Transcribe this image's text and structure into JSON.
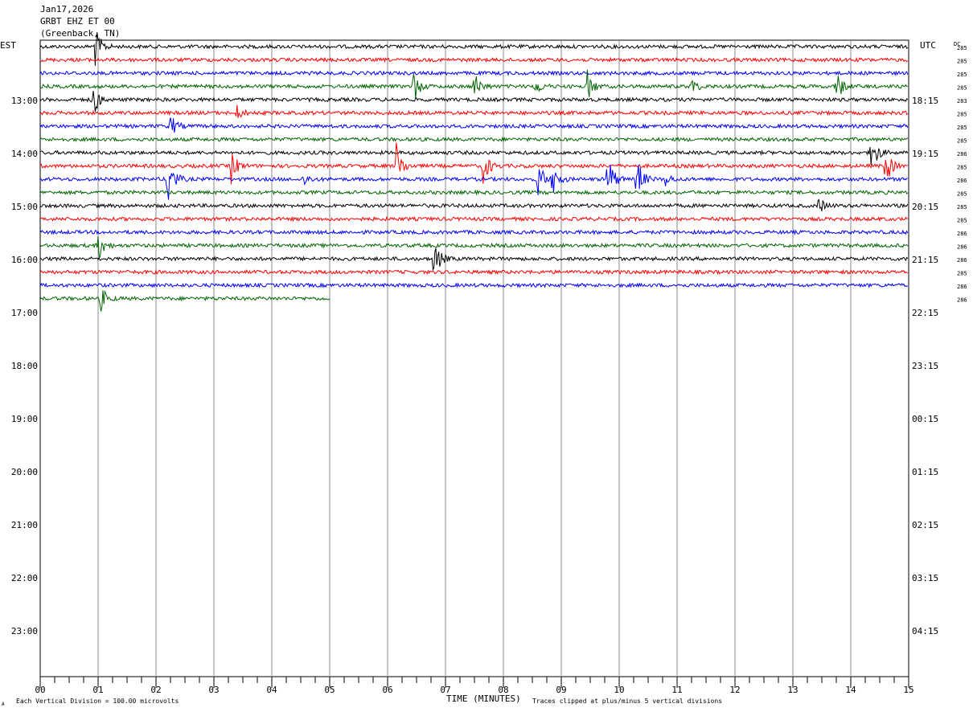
{
  "header": {
    "date": "Jan17,2026",
    "station": "GRBT EHZ ET 00",
    "location": "(Greenback, TN)"
  },
  "left_tz": "EST",
  "right_tz": "UTC",
  "dc_label": "DC",
  "footer": {
    "vertical_scale": "Each Vertical Division =  100.00 microvolts",
    "xlabel": "TIME (MINUTES)",
    "clip_note": "Traces clipped at plus/minus 5 vertical divisions",
    "corner_mark": "A"
  },
  "chart_data": {
    "type": "line",
    "title": "",
    "xlabel": "TIME (MINUTES)",
    "ylabel": "",
    "xlim": [
      0,
      15
    ],
    "x_ticks": [
      "00",
      "01",
      "02",
      "03",
      "04",
      "05",
      "06",
      "07",
      "08",
      "09",
      "10",
      "11",
      "12",
      "13",
      "14",
      "15"
    ],
    "left_hour_labels": [
      "13:00",
      "14:00",
      "15:00",
      "16:00",
      "17:00",
      "18:00",
      "19:00",
      "20:00",
      "21:00",
      "22:00",
      "23:00"
    ],
    "right_hour_labels": [
      "18:15",
      "19:15",
      "20:15",
      "21:15",
      "22:15",
      "23:15",
      "00:15",
      "01:15",
      "02:15",
      "03:15",
      "04:15"
    ],
    "trace_colors": [
      "#000000",
      "#ff0000",
      "#0000ff",
      "#006400"
    ],
    "trace_count": 20,
    "last_trace_end_minute": 5,
    "dc_offsets": [
      "285",
      "285",
      "285",
      "285",
      "283",
      "285",
      "285",
      "285",
      "286",
      "285",
      "286",
      "285",
      "285",
      "285",
      "286",
      "286",
      "286",
      "285",
      "286",
      "286"
    ],
    "events": [
      {
        "trace": 0,
        "minute": 0.95,
        "amp": 2.5
      },
      {
        "trace": 3,
        "minute": 6.45,
        "amp": 2.0
      },
      {
        "trace": 3,
        "minute": 7.5,
        "amp": 1.8
      },
      {
        "trace": 3,
        "minute": 8.55,
        "amp": 1.2
      },
      {
        "trace": 3,
        "minute": 9.45,
        "amp": 2.0
      },
      {
        "trace": 3,
        "minute": 11.25,
        "amp": 1.1
      },
      {
        "trace": 3,
        "minute": 13.75,
        "amp": 2.2
      },
      {
        "trace": 4,
        "minute": 0.9,
        "amp": 2.5
      },
      {
        "trace": 5,
        "minute": 3.4,
        "amp": 0.9
      },
      {
        "trace": 6,
        "minute": 2.25,
        "amp": 1.5
      },
      {
        "trace": 8,
        "minute": 14.35,
        "amp": 3.0
      },
      {
        "trace": 9,
        "minute": 3.3,
        "amp": 2.2
      },
      {
        "trace": 9,
        "minute": 6.15,
        "amp": 3.0
      },
      {
        "trace": 9,
        "minute": 7.65,
        "amp": 2.5
      },
      {
        "trace": 9,
        "minute": 14.6,
        "amp": 2.5
      },
      {
        "trace": 10,
        "minute": 2.2,
        "amp": 4.0
      },
      {
        "trace": 10,
        "minute": 4.55,
        "amp": 0.8
      },
      {
        "trace": 10,
        "minute": 8.6,
        "amp": 2.5
      },
      {
        "trace": 10,
        "minute": 8.85,
        "amp": 2.0
      },
      {
        "trace": 10,
        "minute": 9.8,
        "amp": 3.5
      },
      {
        "trace": 10,
        "minute": 10.3,
        "amp": 3.0
      },
      {
        "trace": 10,
        "minute": 10.8,
        "amp": 0.8
      },
      {
        "trace": 12,
        "minute": 13.45,
        "amp": 1.0
      },
      {
        "trace": 15,
        "minute": 1.0,
        "amp": 2.0
      },
      {
        "trace": 16,
        "minute": 6.8,
        "amp": 2.8
      },
      {
        "trace": 19,
        "minute": 1.05,
        "amp": 1.5
      }
    ]
  }
}
